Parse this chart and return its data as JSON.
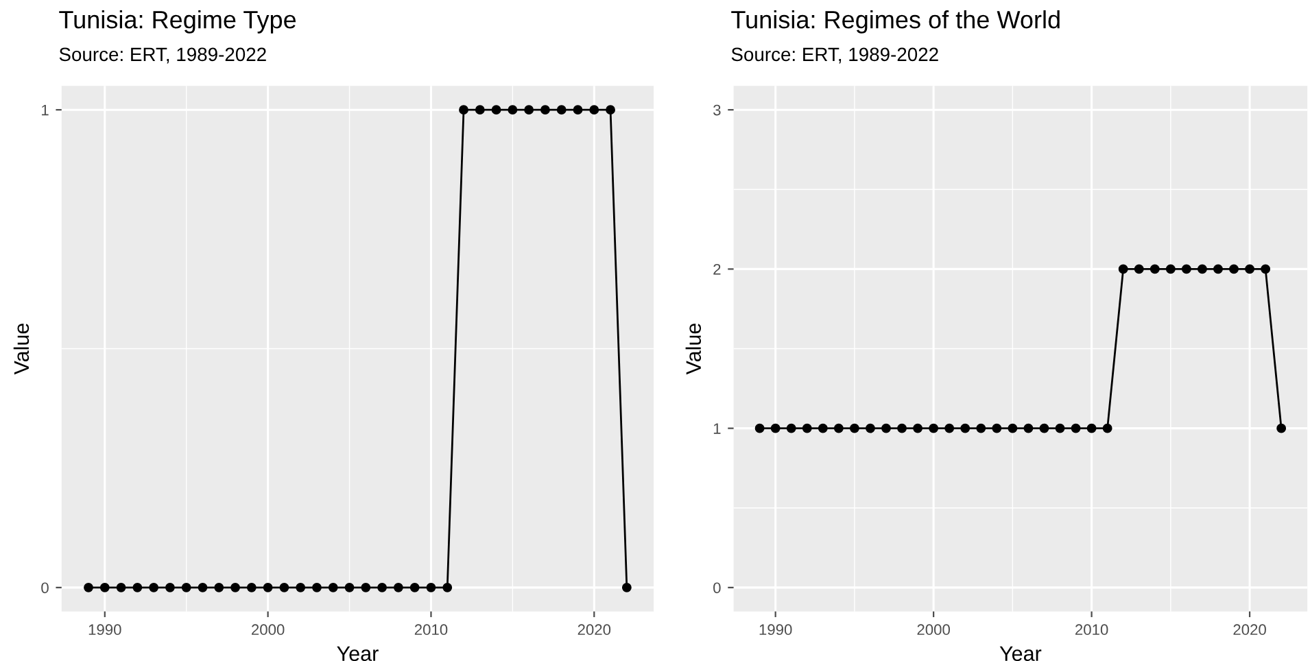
{
  "chart_data": [
    {
      "type": "line",
      "title": "Tunisia: Regime Type",
      "subtitle": "Source: ERT, 1989-2022",
      "xlabel": "Year",
      "ylabel": "Value",
      "x": [
        1989,
        1990,
        1991,
        1992,
        1993,
        1994,
        1995,
        1996,
        1997,
        1998,
        1999,
        2000,
        2001,
        2002,
        2003,
        2004,
        2005,
        2006,
        2007,
        2008,
        2009,
        2010,
        2011,
        2012,
        2013,
        2014,
        2015,
        2016,
        2017,
        2018,
        2019,
        2020,
        2021,
        2022
      ],
      "series": [
        {
          "color": "#000000",
          "values": [
            0,
            0,
            0,
            0,
            0,
            0,
            0,
            0,
            0,
            0,
            0,
            0,
            0,
            0,
            0,
            0,
            0,
            0,
            0,
            0,
            0,
            0,
            0,
            1,
            1,
            1,
            1,
            1,
            1,
            1,
            1,
            1,
            1,
            0
          ]
        }
      ],
      "xlim": [
        1987.35,
        2023.65
      ],
      "xticks": [
        1990,
        2000,
        2010,
        2020
      ],
      "ylim": [
        -0.05,
        1.05
      ],
      "yticks": [
        0,
        1
      ],
      "grid": true,
      "marker": "circle",
      "line_style": "solid",
      "legend": false
    },
    {
      "type": "line",
      "title": "Tunisia: Regimes of the World",
      "subtitle": "Source: ERT, 1989-2022",
      "xlabel": "Year",
      "ylabel": "Value",
      "x": [
        1989,
        1990,
        1991,
        1992,
        1993,
        1994,
        1995,
        1996,
        1997,
        1998,
        1999,
        2000,
        2001,
        2002,
        2003,
        2004,
        2005,
        2006,
        2007,
        2008,
        2009,
        2010,
        2011,
        2012,
        2013,
        2014,
        2015,
        2016,
        2017,
        2018,
        2019,
        2020,
        2021,
        2022
      ],
      "series": [
        {
          "color": "#000000",
          "values": [
            1,
            1,
            1,
            1,
            1,
            1,
            1,
            1,
            1,
            1,
            1,
            1,
            1,
            1,
            1,
            1,
            1,
            1,
            1,
            1,
            1,
            1,
            1,
            2,
            2,
            2,
            2,
            2,
            2,
            2,
            2,
            2,
            2,
            1
          ]
        }
      ],
      "xlim": [
        1987.35,
        2023.65
      ],
      "xticks": [
        1990,
        2000,
        2010,
        2020
      ],
      "ylim": [
        -0.15,
        3.15
      ],
      "yticks": [
        0,
        1,
        2,
        3
      ],
      "grid": true,
      "marker": "circle",
      "line_style": "solid",
      "legend": false
    }
  ]
}
